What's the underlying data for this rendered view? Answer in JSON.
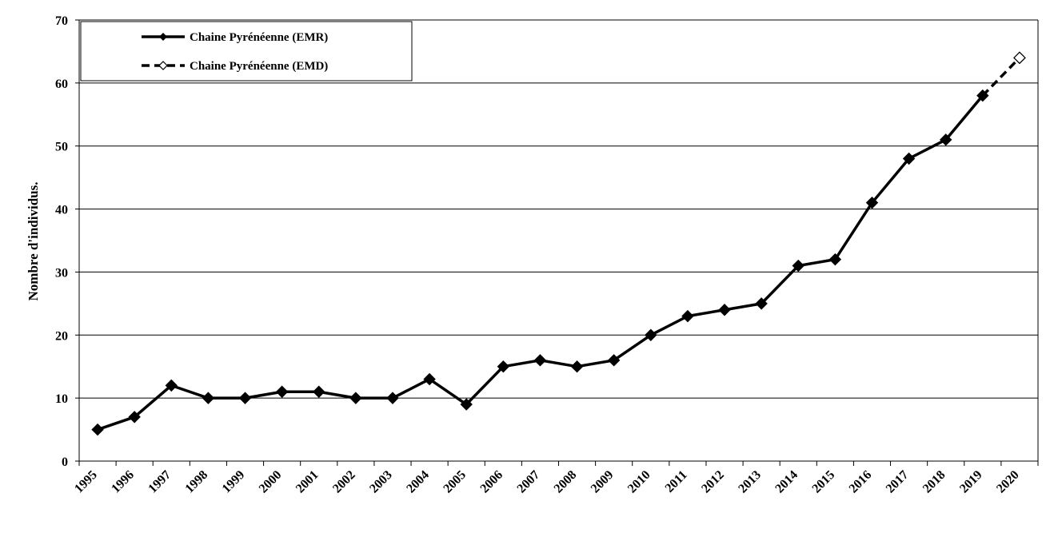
{
  "chart_data": {
    "type": "line",
    "title": "",
    "xlabel": "",
    "ylabel": "Nombre d'individus.",
    "ylim": [
      0,
      70
    ],
    "yticks": [
      0,
      10,
      20,
      30,
      40,
      50,
      60,
      70
    ],
    "grid": true,
    "legend_position": "top-left",
    "categories": [
      "1995",
      "1996",
      "1997",
      "1998",
      "1999",
      "2000",
      "2001",
      "2002",
      "2003",
      "2004",
      "2005",
      "2006",
      "2007",
      "2008",
      "2009",
      "2010",
      "2011",
      "2012",
      "2013",
      "2014",
      "2015",
      "2016",
      "2017",
      "2018",
      "2019",
      "2020"
    ],
    "series": [
      {
        "name": "Chaine Pyrénéenne (EMR)",
        "style": "solid",
        "marker": "filled-diamond",
        "color": "#000000",
        "values": [
          5,
          7,
          12,
          10,
          10,
          11,
          11,
          10,
          10,
          13,
          9,
          15,
          16,
          15,
          16,
          20,
          23,
          24,
          25,
          31,
          32,
          41,
          48,
          51,
          58,
          null
        ]
      },
      {
        "name": "Chaine Pyrénéenne (EMD)",
        "style": "dashed",
        "marker": "open-diamond",
        "color": "#000000",
        "values": [
          null,
          null,
          null,
          null,
          null,
          null,
          null,
          null,
          null,
          null,
          null,
          null,
          null,
          null,
          null,
          null,
          null,
          null,
          null,
          null,
          null,
          null,
          null,
          null,
          58,
          64
        ]
      }
    ]
  }
}
